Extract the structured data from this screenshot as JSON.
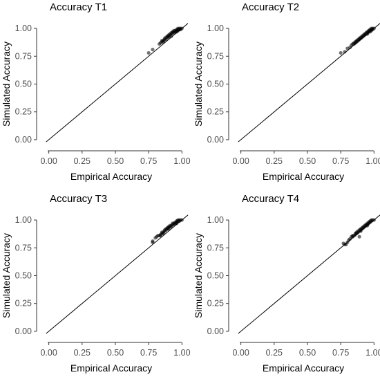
{
  "figure": {
    "x_axis_title": "Empirical Accuracy",
    "y_axis_title": "Simulated Accuracy"
  },
  "chart_data": [
    {
      "type": "scatter",
      "title": "Accuracy T1",
      "xlabel": "Empirical Accuracy",
      "ylabel": "Simulated Accuracy",
      "xlim": [
        -0.05,
        1.05
      ],
      "ylim": [
        -0.05,
        1.05
      ],
      "xticks": [
        "0.00",
        "0.25",
        "0.50",
        "0.75",
        "1.00"
      ],
      "yticks": [
        "0.00",
        "0.25",
        "0.50",
        "0.75",
        "1.00"
      ],
      "reference_line": "y = x",
      "grid": false,
      "points": [
        [
          0.75,
          0.78
        ],
        [
          0.78,
          0.81
        ],
        [
          0.83,
          0.86
        ],
        [
          0.84,
          0.87
        ],
        [
          0.85,
          0.88
        ],
        [
          0.85,
          0.89
        ],
        [
          0.86,
          0.89
        ],
        [
          0.87,
          0.9
        ],
        [
          0.87,
          0.91
        ],
        [
          0.88,
          0.92
        ],
        [
          0.88,
          0.9
        ],
        [
          0.89,
          0.92
        ],
        [
          0.89,
          0.93
        ],
        [
          0.9,
          0.93
        ],
        [
          0.9,
          0.94
        ],
        [
          0.91,
          0.94
        ],
        [
          0.91,
          0.95
        ],
        [
          0.92,
          0.95
        ],
        [
          0.92,
          0.96
        ],
        [
          0.93,
          0.96
        ],
        [
          0.93,
          0.97
        ],
        [
          0.94,
          0.97
        ],
        [
          0.94,
          0.96
        ],
        [
          0.95,
          0.97
        ],
        [
          0.95,
          0.98
        ],
        [
          0.96,
          0.98
        ],
        [
          0.96,
          0.99
        ],
        [
          0.97,
          0.99
        ],
        [
          0.97,
          0.98
        ],
        [
          0.98,
          0.99
        ],
        [
          0.98,
          1.0
        ],
        [
          0.99,
          1.0
        ],
        [
          0.99,
          0.99
        ],
        [
          1.0,
          1.0
        ],
        [
          0.97,
          1.0
        ],
        [
          0.96,
          0.97
        ],
        [
          0.92,
          0.93
        ],
        [
          0.9,
          0.92
        ],
        [
          0.86,
          0.88
        ],
        [
          0.94,
          0.98
        ]
      ]
    },
    {
      "type": "scatter",
      "title": "Accuracy T2",
      "xlabel": "Empirical Accuracy",
      "ylabel": "Simulated Accuracy",
      "xlim": [
        -0.05,
        1.05
      ],
      "ylim": [
        -0.05,
        1.05
      ],
      "xticks": [
        "0.00",
        "0.25",
        "0.50",
        "0.75",
        "1.00"
      ],
      "yticks": [
        "0.00",
        "0.25",
        "0.50",
        "0.75",
        "1.00"
      ],
      "reference_line": "y = x",
      "grid": false,
      "points": [
        [
          0.75,
          0.78
        ],
        [
          0.78,
          0.79
        ],
        [
          0.8,
          0.82
        ],
        [
          0.82,
          0.83
        ],
        [
          0.83,
          0.85
        ],
        [
          0.84,
          0.86
        ],
        [
          0.85,
          0.87
        ],
        [
          0.86,
          0.87
        ],
        [
          0.86,
          0.88
        ],
        [
          0.87,
          0.89
        ],
        [
          0.88,
          0.89
        ],
        [
          0.88,
          0.9
        ],
        [
          0.89,
          0.91
        ],
        [
          0.9,
          0.91
        ],
        [
          0.9,
          0.92
        ],
        [
          0.91,
          0.93
        ],
        [
          0.92,
          0.93
        ],
        [
          0.92,
          0.94
        ],
        [
          0.93,
          0.95
        ],
        [
          0.94,
          0.95
        ],
        [
          0.94,
          0.96
        ],
        [
          0.95,
          0.96
        ],
        [
          0.95,
          0.97
        ],
        [
          0.96,
          0.97
        ],
        [
          0.96,
          0.98
        ],
        [
          0.97,
          0.98
        ],
        [
          0.97,
          0.99
        ],
        [
          0.98,
          0.99
        ],
        [
          0.98,
          1.0
        ],
        [
          0.99,
          0.99
        ],
        [
          0.99,
          1.0
        ],
        [
          1.0,
          1.0
        ],
        [
          0.93,
          0.94
        ],
        [
          0.89,
          0.9
        ],
        [
          0.85,
          0.86
        ],
        [
          0.95,
          0.95
        ],
        [
          0.97,
          0.97
        ],
        [
          0.91,
          0.92
        ],
        [
          0.87,
          0.88
        ],
        [
          0.98,
          0.98
        ]
      ]
    },
    {
      "type": "scatter",
      "title": "Accuracy T3",
      "xlabel": "Empirical Accuracy",
      "ylabel": "Simulated Accuracy",
      "xlim": [
        -0.05,
        1.05
      ],
      "ylim": [
        -0.05,
        1.05
      ],
      "xticks": [
        "0.00",
        "0.25",
        "0.50",
        "0.75",
        "1.00"
      ],
      "yticks": [
        "0.00",
        "0.25",
        "0.50",
        "0.75",
        "1.00"
      ],
      "reference_line": "y = x",
      "grid": false,
      "points": [
        [
          0.78,
          0.8
        ],
        [
          0.78,
          0.81
        ],
        [
          0.8,
          0.84
        ],
        [
          0.81,
          0.85
        ],
        [
          0.82,
          0.86
        ],
        [
          0.83,
          0.86
        ],
        [
          0.84,
          0.87
        ],
        [
          0.85,
          0.88
        ],
        [
          0.85,
          0.89
        ],
        [
          0.86,
          0.89
        ],
        [
          0.87,
          0.9
        ],
        [
          0.87,
          0.91
        ],
        [
          0.88,
          0.91
        ],
        [
          0.88,
          0.92
        ],
        [
          0.89,
          0.92
        ],
        [
          0.89,
          0.93
        ],
        [
          0.9,
          0.93
        ],
        [
          0.9,
          0.94
        ],
        [
          0.91,
          0.94
        ],
        [
          0.91,
          0.95
        ],
        [
          0.92,
          0.95
        ],
        [
          0.93,
          0.96
        ],
        [
          0.93,
          0.97
        ],
        [
          0.94,
          0.97
        ],
        [
          0.95,
          0.97
        ],
        [
          0.95,
          0.98
        ],
        [
          0.96,
          0.98
        ],
        [
          0.96,
          0.99
        ],
        [
          0.97,
          0.99
        ],
        [
          0.97,
          1.0
        ],
        [
          0.98,
          0.99
        ],
        [
          0.98,
          1.0
        ],
        [
          0.99,
          1.0
        ],
        [
          1.0,
          1.0
        ],
        [
          0.94,
          0.96
        ],
        [
          0.92,
          0.94
        ],
        [
          0.9,
          0.92
        ],
        [
          0.86,
          0.88
        ],
        [
          0.84,
          0.86
        ],
        [
          0.96,
          0.97
        ]
      ]
    },
    {
      "type": "scatter",
      "title": "Accuracy T4",
      "xlabel": "Empirical Accuracy",
      "ylabel": "Simulated Accuracy",
      "xlim": [
        -0.05,
        1.05
      ],
      "ylim": [
        -0.05,
        1.05
      ],
      "xticks": [
        "0.00",
        "0.25",
        "0.50",
        "0.75",
        "1.00"
      ],
      "yticks": [
        "0.00",
        "0.25",
        "0.50",
        "0.75",
        "1.00"
      ],
      "reference_line": "y = x",
      "grid": false,
      "points": [
        [
          0.77,
          0.79
        ],
        [
          0.78,
          0.78
        ],
        [
          0.79,
          0.78
        ],
        [
          0.8,
          0.8
        ],
        [
          0.81,
          0.82
        ],
        [
          0.82,
          0.83
        ],
        [
          0.83,
          0.85
        ],
        [
          0.84,
          0.86
        ],
        [
          0.85,
          0.86
        ],
        [
          0.86,
          0.87
        ],
        [
          0.86,
          0.88
        ],
        [
          0.87,
          0.89
        ],
        [
          0.88,
          0.89
        ],
        [
          0.88,
          0.9
        ],
        [
          0.89,
          0.91
        ],
        [
          0.89,
          0.85
        ],
        [
          0.9,
          0.91
        ],
        [
          0.9,
          0.92
        ],
        [
          0.91,
          0.92
        ],
        [
          0.91,
          0.93
        ],
        [
          0.92,
          0.94
        ],
        [
          0.93,
          0.94
        ],
        [
          0.93,
          0.95
        ],
        [
          0.94,
          0.95
        ],
        [
          0.94,
          0.96
        ],
        [
          0.95,
          0.96
        ],
        [
          0.95,
          0.97
        ],
        [
          0.96,
          0.97
        ],
        [
          0.96,
          0.98
        ],
        [
          0.97,
          0.98
        ],
        [
          0.97,
          0.99
        ],
        [
          0.98,
          0.99
        ],
        [
          0.98,
          1.0
        ],
        [
          0.99,
          1.0
        ],
        [
          1.0,
          1.0
        ],
        [
          0.92,
          0.93
        ],
        [
          0.87,
          0.88
        ],
        [
          0.84,
          0.85
        ],
        [
          0.95,
          0.95
        ],
        [
          0.9,
          0.9
        ]
      ]
    }
  ]
}
